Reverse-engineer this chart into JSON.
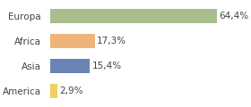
{
  "categories": [
    "Europa",
    "Africa",
    "Asia",
    "America"
  ],
  "values": [
    64.4,
    17.3,
    15.4,
    2.9
  ],
  "bar_colors": [
    "#a8be8c",
    "#f0b47a",
    "#6b83b5",
    "#f0d060"
  ],
  "label_texts": [
    "64,4%",
    "17,3%",
    "15,4%",
    "2,9%"
  ],
  "xlim": [
    0,
    75
  ],
  "background_color": "#ffffff",
  "bar_height": 0.55,
  "label_fontsize": 7.5,
  "category_fontsize": 7.5
}
